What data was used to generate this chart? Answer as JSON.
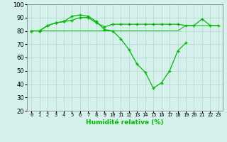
{
  "x": [
    0,
    1,
    2,
    3,
    4,
    5,
    6,
    7,
    8,
    9,
    10,
    11,
    12,
    13,
    14,
    15,
    16,
    17,
    18,
    19,
    20,
    21,
    22,
    23
  ],
  "line_main": [
    80,
    80,
    84,
    86,
    87,
    91,
    92,
    91,
    87,
    81,
    80,
    74,
    66,
    55,
    49,
    37,
    41,
    50,
    65,
    71,
    null,
    null,
    null,
    null
  ],
  "line_upper": [
    80,
    80,
    84,
    86,
    87,
    88,
    90,
    90,
    86,
    83,
    85,
    85,
    85,
    85,
    85,
    85,
    85,
    85,
    85,
    84,
    84,
    89,
    84,
    84
  ],
  "line_lower": [
    80,
    80,
    80,
    80,
    80,
    80,
    80,
    80,
    80,
    80,
    80,
    80,
    80,
    80,
    80,
    80,
    80,
    80,
    80,
    84,
    84,
    84,
    84,
    84
  ],
  "bg_color": "#d6f0ec",
  "grid_color": "#b0d8d0",
  "line_color": "#00bb00",
  "xlabel": "Humidité relative (%)",
  "ylim": [
    20,
    100
  ],
  "xlim": [
    -0.5,
    23.5
  ],
  "yticks": [
    20,
    30,
    40,
    50,
    60,
    70,
    80,
    90,
    100
  ]
}
